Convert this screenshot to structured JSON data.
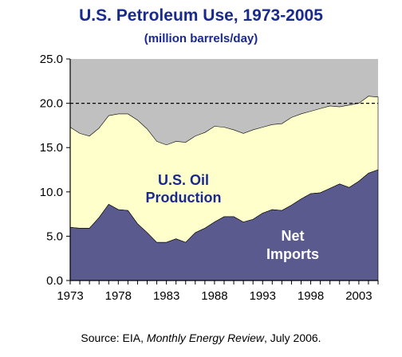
{
  "chart_data": {
    "type": "area",
    "title": "U.S. Petroleum Use, 1973-2005",
    "subtitle": "(million barrels/day)",
    "xlim": [
      1973,
      2005
    ],
    "ylim": [
      0,
      25
    ],
    "y_ticks": [
      "0.0",
      "5.0",
      "10.0",
      "15.0",
      "20.0",
      "25.0"
    ],
    "x_ticks": [
      "1973",
      "1978",
      "1983",
      "1988",
      "1993",
      "1998",
      "2003"
    ],
    "x_tick_values": [
      1973,
      1978,
      1983,
      1988,
      1993,
      1998,
      2003
    ],
    "y_tick_values": [
      0,
      5,
      10,
      15,
      20,
      25
    ],
    "reference_line": {
      "y": 20,
      "style": "dashed"
    },
    "x": [
      1973,
      1974,
      1975,
      1976,
      1977,
      1978,
      1979,
      1980,
      1981,
      1982,
      1983,
      1984,
      1985,
      1986,
      1987,
      1988,
      1989,
      1990,
      1991,
      1992,
      1993,
      1994,
      1995,
      1996,
      1997,
      1998,
      1999,
      2000,
      2001,
      2002,
      2003,
      2004,
      2005
    ],
    "series": [
      {
        "name": "Net Imports",
        "label_lines": [
          "Net",
          "Imports"
        ],
        "color": "#5a5a8f",
        "values": [
          6.0,
          5.9,
          5.9,
          7.1,
          8.6,
          8.0,
          7.9,
          6.4,
          5.4,
          4.3,
          4.3,
          4.7,
          4.3,
          5.4,
          5.9,
          6.6,
          7.2,
          7.2,
          6.6,
          6.9,
          7.6,
          8.0,
          7.9,
          8.5,
          9.2,
          9.8,
          9.9,
          10.4,
          10.9,
          10.5,
          11.2,
          12.1,
          12.5
        ]
      },
      {
        "name": "U.S. Oil Production",
        "label_lines": [
          "U.S. Oil",
          "Production"
        ],
        "color": "#ffffcc",
        "values": [
          11.3,
          10.7,
          10.4,
          10.1,
          10.0,
          10.8,
          10.9,
          11.7,
          11.7,
          11.4,
          11.0,
          11.0,
          11.3,
          10.9,
          10.8,
          10.8,
          10.1,
          9.8,
          10.0,
          10.1,
          9.7,
          9.6,
          9.8,
          9.9,
          9.6,
          9.3,
          9.5,
          9.3,
          8.7,
          9.3,
          8.8,
          8.7,
          8.2
        ]
      }
    ],
    "background_color": "#c0c0c0"
  },
  "source": {
    "prefix": "Source: EIA, ",
    "italic": "Monthly Energy Review",
    "suffix": ", July 2006."
  }
}
